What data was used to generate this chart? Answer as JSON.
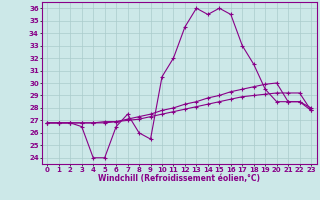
{
  "title": "",
  "xlabel": "Windchill (Refroidissement éolien,°C)",
  "ylabel": "",
  "background_color": "#cce8e8",
  "grid_color": "#aacccc",
  "line_color": "#880088",
  "x": [
    0,
    1,
    2,
    3,
    4,
    5,
    6,
    7,
    8,
    9,
    10,
    11,
    12,
    13,
    14,
    15,
    16,
    17,
    18,
    19,
    20,
    21,
    22,
    23
  ],
  "line1": [
    26.8,
    26.8,
    26.8,
    26.5,
    24.0,
    24.0,
    26.5,
    27.5,
    26.0,
    25.5,
    30.5,
    32.0,
    34.5,
    36.0,
    35.5,
    36.0,
    35.5,
    33.0,
    31.5,
    29.5,
    28.5,
    28.5,
    28.5,
    27.8
  ],
  "line2": [
    26.8,
    26.8,
    26.8,
    26.8,
    26.8,
    26.9,
    26.9,
    27.1,
    27.3,
    27.5,
    27.8,
    28.0,
    28.3,
    28.5,
    28.8,
    29.0,
    29.3,
    29.5,
    29.7,
    29.9,
    30.0,
    28.5,
    28.5,
    28.0
  ],
  "line3": [
    26.8,
    26.8,
    26.8,
    26.8,
    26.8,
    26.8,
    26.9,
    27.0,
    27.1,
    27.3,
    27.5,
    27.7,
    27.9,
    28.1,
    28.3,
    28.5,
    28.7,
    28.9,
    29.0,
    29.1,
    29.2,
    29.2,
    29.2,
    27.8
  ],
  "ylim": [
    23.5,
    36.5
  ],
  "xlim": [
    -0.5,
    23.5
  ],
  "yticks": [
    24,
    25,
    26,
    27,
    28,
    29,
    30,
    31,
    32,
    33,
    34,
    35,
    36
  ],
  "xticks": [
    0,
    1,
    2,
    3,
    4,
    5,
    6,
    7,
    8,
    9,
    10,
    11,
    12,
    13,
    14,
    15,
    16,
    17,
    18,
    19,
    20,
    21,
    22,
    23
  ],
  "marker": "+",
  "markersize": 3,
  "linewidth": 0.8,
  "label_fontsize": 5.5,
  "tick_fontsize": 5
}
